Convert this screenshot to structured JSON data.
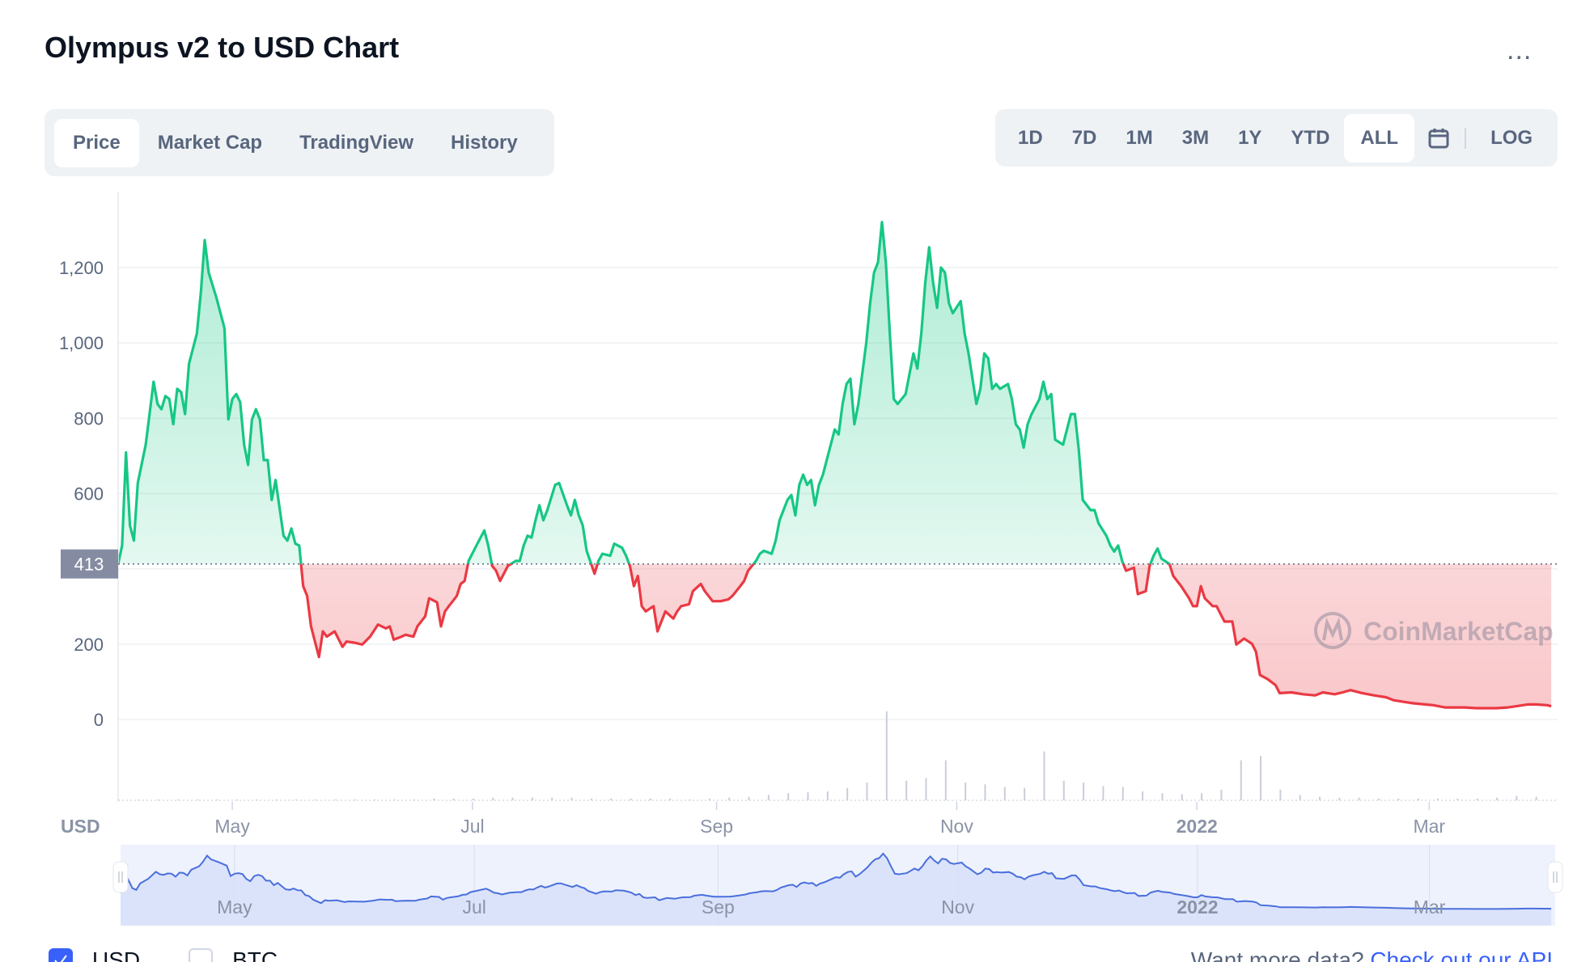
{
  "header": {
    "title": "Olympus v2 to USD Chart",
    "more_label": "..."
  },
  "tabs": [
    {
      "label": "Price",
      "active": true
    },
    {
      "label": "Market Cap"
    },
    {
      "label": "TradingView"
    },
    {
      "label": "History"
    }
  ],
  "ranges": [
    {
      "label": "1D"
    },
    {
      "label": "7D"
    },
    {
      "label": "1M"
    },
    {
      "label": "3M"
    },
    {
      "label": "1Y"
    },
    {
      "label": "YTD"
    },
    {
      "label": "ALL",
      "active": true
    }
  ],
  "log_label": "LOG",
  "legend": {
    "usd": "USD",
    "btc": "BTC",
    "usd_checked": true,
    "btc_checked": false
  },
  "footer": {
    "prompt": "Want more data?",
    "link": "Check out our API"
  },
  "watermark": "CoinMarketCap",
  "colors": {
    "up": "#16c784",
    "down": "#ea3943",
    "navigator": "#3861fb"
  },
  "chart_data": {
    "type": "line",
    "title": "Olympus v2 to USD Chart",
    "currency_label": "USD",
    "start_date": "2021-04-02",
    "x_unit": "days since start",
    "xlim": [
      0,
      365
    ],
    "ylim": [
      0,
      1400
    ],
    "grid": true,
    "baseline": {
      "value": 413,
      "label": "413"
    },
    "yticks": [
      {
        "v": 0,
        "label": "0"
      },
      {
        "v": 200,
        "label": "200"
      },
      {
        "v": 400,
        "label": ""
      },
      {
        "v": 600,
        "label": "600"
      },
      {
        "v": 800,
        "label": "800"
      },
      {
        "v": 1000,
        "label": "1,000"
      },
      {
        "v": 1200,
        "label": "1,200"
      }
    ],
    "xticks": [
      {
        "d": 29,
        "label": "May",
        "bold": false
      },
      {
        "d": 90,
        "label": "Jul",
        "bold": false
      },
      {
        "d": 152,
        "label": "Sep",
        "bold": false
      },
      {
        "d": 213,
        "label": "Nov",
        "bold": false
      },
      {
        "d": 274,
        "label": "2022",
        "bold": true
      },
      {
        "d": 333,
        "label": "Mar",
        "bold": false
      }
    ],
    "price": [
      [
        0,
        413
      ],
      [
        1,
        462
      ],
      [
        2,
        709
      ],
      [
        3,
        515
      ],
      [
        4,
        475
      ],
      [
        5,
        628
      ],
      [
        7,
        730
      ],
      [
        9,
        897
      ],
      [
        10,
        838
      ],
      [
        11,
        824
      ],
      [
        12,
        859
      ],
      [
        13,
        851
      ],
      [
        14,
        784
      ],
      [
        15,
        878
      ],
      [
        16,
        869
      ],
      [
        17,
        811
      ],
      [
        18,
        945
      ],
      [
        20,
        1025
      ],
      [
        21,
        1133
      ],
      [
        22,
        1273
      ],
      [
        23,
        1187
      ],
      [
        25,
        1119
      ],
      [
        26,
        1079
      ],
      [
        27,
        1039
      ],
      [
        28,
        797
      ],
      [
        29,
        851
      ],
      [
        30,
        864
      ],
      [
        31,
        843
      ],
      [
        32,
        730
      ],
      [
        33,
        676
      ],
      [
        34,
        797
      ],
      [
        35,
        824
      ],
      [
        36,
        797
      ],
      [
        37,
        689
      ],
      [
        38,
        689
      ],
      [
        39,
        583
      ],
      [
        40,
        636
      ],
      [
        42,
        488
      ],
      [
        43,
        475
      ],
      [
        44,
        507
      ],
      [
        45,
        467
      ],
      [
        46,
        462
      ],
      [
        47,
        354
      ],
      [
        48,
        328
      ],
      [
        49,
        247
      ],
      [
        51,
        166
      ],
      [
        52,
        234
      ],
      [
        53,
        220
      ],
      [
        55,
        234
      ],
      [
        57,
        193
      ],
      [
        58,
        207
      ],
      [
        60,
        204
      ],
      [
        62,
        199
      ],
      [
        64,
        220
      ],
      [
        66,
        252
      ],
      [
        68,
        242
      ],
      [
        69,
        247
      ],
      [
        70,
        212
      ],
      [
        72,
        220
      ],
      [
        73,
        225
      ],
      [
        75,
        220
      ],
      [
        76,
        247
      ],
      [
        78,
        274
      ],
      [
        79,
        322
      ],
      [
        81,
        311
      ],
      [
        82,
        247
      ],
      [
        83,
        287
      ],
      [
        84,
        301
      ],
      [
        86,
        328
      ],
      [
        87,
        360
      ],
      [
        88,
        368
      ],
      [
        89,
        421
      ],
      [
        91,
        462
      ],
      [
        93,
        502
      ],
      [
        94,
        462
      ],
      [
        95,
        408
      ],
      [
        96,
        395
      ],
      [
        97,
        368
      ],
      [
        99,
        408
      ],
      [
        101,
        421
      ],
      [
        102,
        421
      ],
      [
        103,
        462
      ],
      [
        104,
        488
      ],
      [
        105,
        483
      ],
      [
        106,
        529
      ],
      [
        107,
        569
      ],
      [
        108,
        529
      ],
      [
        109,
        556
      ],
      [
        111,
        623
      ],
      [
        112,
        628
      ],
      [
        114,
        569
      ],
      [
        115,
        542
      ],
      [
        116,
        583
      ],
      [
        117,
        542
      ],
      [
        118,
        515
      ],
      [
        119,
        448
      ],
      [
        121,
        387
      ],
      [
        122,
        421
      ],
      [
        123,
        440
      ],
      [
        125,
        435
      ],
      [
        126,
        467
      ],
      [
        128,
        456
      ],
      [
        129,
        435
      ],
      [
        130,
        408
      ],
      [
        131,
        354
      ],
      [
        132,
        381
      ],
      [
        133,
        301
      ],
      [
        134,
        287
      ],
      [
        136,
        301
      ],
      [
        137,
        234
      ],
      [
        139,
        287
      ],
      [
        141,
        268
      ],
      [
        142,
        287
      ],
      [
        143,
        301
      ],
      [
        145,
        306
      ],
      [
        146,
        341
      ],
      [
        148,
        360
      ],
      [
        149,
        341
      ],
      [
        151,
        314
      ],
      [
        153,
        314
      ],
      [
        155,
        319
      ],
      [
        156,
        328
      ],
      [
        158,
        354
      ],
      [
        159,
        368
      ],
      [
        160,
        395
      ],
      [
        162,
        421
      ],
      [
        163,
        440
      ],
      [
        164,
        448
      ],
      [
        166,
        440
      ],
      [
        167,
        475
      ],
      [
        168,
        529
      ],
      [
        170,
        583
      ],
      [
        171,
        596
      ],
      [
        172,
        542
      ],
      [
        173,
        623
      ],
      [
        174,
        650
      ],
      [
        175,
        623
      ],
      [
        176,
        636
      ],
      [
        177,
        569
      ],
      [
        178,
        623
      ],
      [
        179,
        650
      ],
      [
        181,
        730
      ],
      [
        182,
        770
      ],
      [
        183,
        757
      ],
      [
        184,
        838
      ],
      [
        185,
        891
      ],
      [
        186,
        905
      ],
      [
        187,
        784
      ],
      [
        188,
        838
      ],
      [
        190,
        999
      ],
      [
        191,
        1106
      ],
      [
        192,
        1187
      ],
      [
        193,
        1214
      ],
      [
        194,
        1321
      ],
      [
        195,
        1214
      ],
      [
        196,
        1025
      ],
      [
        197,
        851
      ],
      [
        198,
        838
      ],
      [
        200,
        864
      ],
      [
        202,
        972
      ],
      [
        203,
        932
      ],
      [
        204,
        1025
      ],
      [
        205,
        1160
      ],
      [
        206,
        1254
      ],
      [
        207,
        1160
      ],
      [
        208,
        1093
      ],
      [
        209,
        1200
      ],
      [
        210,
        1187
      ],
      [
        211,
        1106
      ],
      [
        212,
        1079
      ],
      [
        214,
        1111
      ],
      [
        215,
        1025
      ],
      [
        216,
        972
      ],
      [
        218,
        838
      ],
      [
        219,
        878
      ],
      [
        220,
        972
      ],
      [
        221,
        959
      ],
      [
        222,
        878
      ],
      [
        223,
        891
      ],
      [
        224,
        878
      ],
      [
        226,
        891
      ],
      [
        227,
        851
      ],
      [
        228,
        784
      ],
      [
        229,
        770
      ],
      [
        230,
        722
      ],
      [
        231,
        784
      ],
      [
        232,
        811
      ],
      [
        234,
        851
      ],
      [
        235,
        897
      ],
      [
        236,
        851
      ],
      [
        237,
        864
      ],
      [
        238,
        743
      ],
      [
        240,
        730
      ],
      [
        242,
        811
      ],
      [
        243,
        811
      ],
      [
        244,
        717
      ],
      [
        245,
        583
      ],
      [
        247,
        556
      ],
      [
        248,
        556
      ],
      [
        249,
        521
      ],
      [
        251,
        488
      ],
      [
        252,
        462
      ],
      [
        253,
        446
      ],
      [
        254,
        462
      ],
      [
        255,
        421
      ],
      [
        256,
        395
      ],
      [
        258,
        403
      ],
      [
        259,
        333
      ],
      [
        261,
        341
      ],
      [
        262,
        408
      ],
      [
        263,
        435
      ],
      [
        264,
        454
      ],
      [
        265,
        427
      ],
      [
        267,
        413
      ],
      [
        268,
        381
      ],
      [
        270,
        354
      ],
      [
        272,
        322
      ],
      [
        273,
        301
      ],
      [
        274,
        301
      ],
      [
        275,
        354
      ],
      [
        276,
        322
      ],
      [
        278,
        301
      ],
      [
        279,
        301
      ],
      [
        281,
        260
      ],
      [
        283,
        260
      ],
      [
        284,
        199
      ],
      [
        286,
        215
      ],
      [
        288,
        201
      ],
      [
        289,
        180
      ],
      [
        290,
        118
      ],
      [
        292,
        107
      ],
      [
        294,
        91
      ],
      [
        295,
        70
      ],
      [
        298,
        72
      ],
      [
        301,
        67
      ],
      [
        304,
        64
      ],
      [
        306,
        72
      ],
      [
        309,
        67
      ],
      [
        311,
        72
      ],
      [
        313,
        78
      ],
      [
        316,
        70
      ],
      [
        319,
        64
      ],
      [
        322,
        59
      ],
      [
        324,
        51
      ],
      [
        327,
        46
      ],
      [
        329,
        43
      ],
      [
        332,
        40
      ],
      [
        334,
        38
      ],
      [
        337,
        32
      ],
      [
        340,
        32
      ],
      [
        342,
        32
      ],
      [
        345,
        30
      ],
      [
        347,
        30
      ],
      [
        350,
        30
      ],
      [
        353,
        32
      ],
      [
        355,
        35
      ],
      [
        358,
        40
      ],
      [
        360,
        40
      ],
      [
        363,
        38
      ],
      [
        364,
        35
      ]
    ],
    "volume_step_days": 5,
    "volume_relative": [
      1,
      1,
      1,
      1,
      1,
      1,
      1,
      1,
      1,
      1,
      1,
      1,
      1,
      1,
      1,
      1,
      2,
      2,
      2,
      3,
      3,
      3,
      3,
      3,
      2,
      2,
      2,
      2,
      2,
      1,
      2,
      3,
      4,
      6,
      8,
      9,
      10,
      14,
      20,
      100,
      22,
      25,
      45,
      20,
      18,
      15,
      14,
      55,
      22,
      20,
      16,
      15,
      10,
      8,
      7,
      8,
      12,
      45,
      50,
      12,
      6,
      4,
      3,
      3,
      2,
      2,
      2,
      2,
      2,
      2,
      3,
      5,
      4
    ]
  }
}
